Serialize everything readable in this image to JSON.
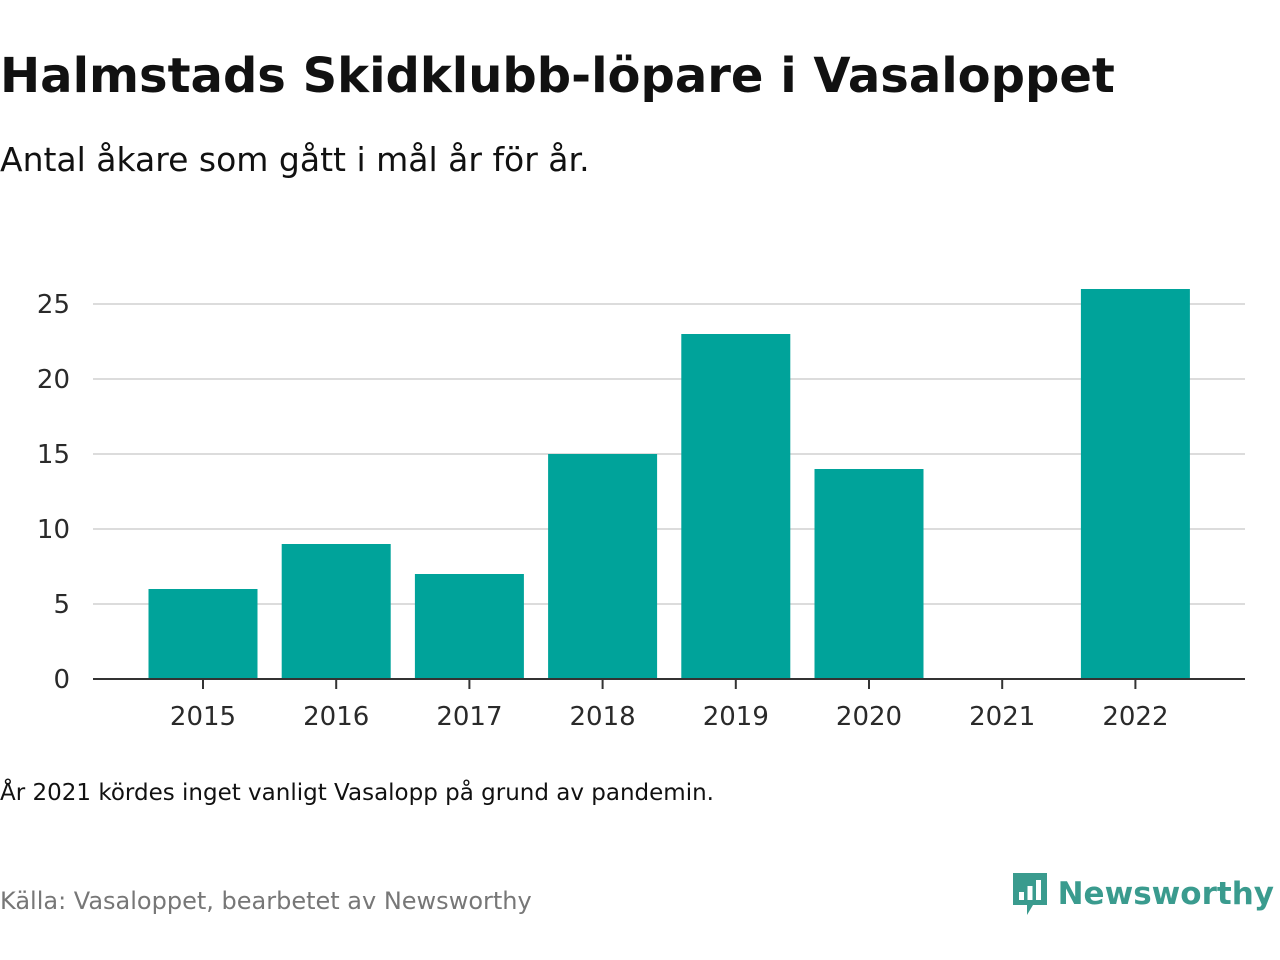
{
  "header": {
    "title": "Halmstads Skidklubb-löpare i Vasaloppet",
    "subtitle": "Antal åkare som gått i mål år för år."
  },
  "chart_data": {
    "type": "bar",
    "title": "Halmstads Skidklubb-löpare i Vasaloppet",
    "subtitle": "Antal åkare som gått i mål år för år.",
    "xlabel": "",
    "ylabel": "",
    "categories": [
      "2015",
      "2016",
      "2017",
      "2018",
      "2019",
      "2020",
      "2021",
      "2022"
    ],
    "values": [
      6,
      9,
      7,
      15,
      23,
      14,
      0,
      26
    ],
    "ylim": [
      0,
      26
    ],
    "yticks": [
      0,
      5,
      10,
      15,
      20,
      25
    ],
    "grid": true,
    "bar_color": "#00a39a"
  },
  "footer": {
    "note": "År 2021 kördes inget vanligt Vasalopp på grund av pandemin.",
    "source": "Källa: Vasaloppet, bearbetet av Newsworthy"
  },
  "brand": {
    "name": "Newsworthy",
    "icon": "newsworthy-logo-icon",
    "color": "#3a9b8e"
  }
}
